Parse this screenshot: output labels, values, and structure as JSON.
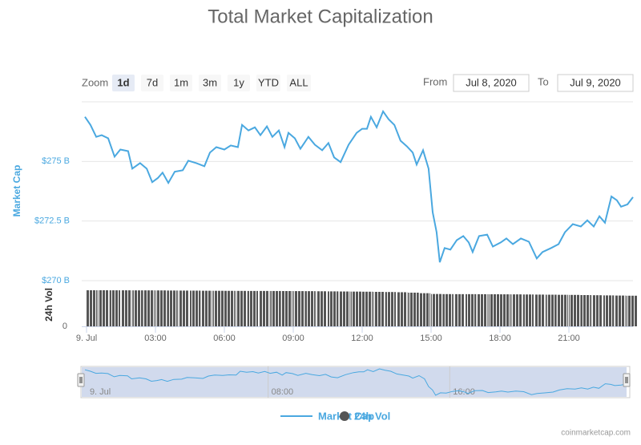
{
  "chart_data": {
    "type": "line",
    "title": "Total Market Capitalization",
    "range_selector": {
      "label": "Zoom",
      "buttons": [
        "1d",
        "7d",
        "1m",
        "3m",
        "1y",
        "YTD",
        "ALL"
      ],
      "selected": 0,
      "from_label": "From",
      "from_value": "Jul 8, 2020",
      "to_label": "To",
      "to_value": "Jul 9, 2020"
    },
    "y_label": "Market Cap",
    "y2_label": "24h Vol",
    "xlim": [
      -0.21,
      23.79
    ],
    "xticks": [
      {
        "value": 0,
        "label": "9. Jul"
      },
      {
        "value": 3,
        "label": "03:00"
      },
      {
        "value": 6,
        "label": "06:00"
      },
      {
        "value": 9,
        "label": "09:00"
      },
      {
        "value": 12,
        "label": "12:00"
      },
      {
        "value": 15,
        "label": "15:00"
      },
      {
        "value": 18,
        "label": "18:00"
      },
      {
        "value": 21,
        "label": "21:00"
      }
    ],
    "ylim": [
      270,
      277.5
    ],
    "yticks": [
      {
        "value": 270,
        "label": "$270 B"
      },
      {
        "value": 272.5,
        "label": "$272.5 B"
      },
      {
        "value": 275,
        "label": "$275 B"
      }
    ],
    "y2lim": [
      0,
      75
    ],
    "y2ticks": [
      0
    ],
    "grid": true,
    "series": [
      {
        "name": "Market Cap",
        "color": "#4aa8e0",
        "x": [
          -0.07,
          0.17,
          0.42,
          0.66,
          0.94,
          1.22,
          1.47,
          1.81,
          1.99,
          2.33,
          2.62,
          2.86,
          3.1,
          3.31,
          3.56,
          3.84,
          4.19,
          4.43,
          4.78,
          5.13,
          5.37,
          5.65,
          6.0,
          6.28,
          6.59,
          6.77,
          7.05,
          7.33,
          7.57,
          7.85,
          8.09,
          8.37,
          8.62,
          8.79,
          9.07,
          9.31,
          9.66,
          9.94,
          10.26,
          10.53,
          10.78,
          11.06,
          11.41,
          11.76,
          12.0,
          12.21,
          12.38,
          12.63,
          12.91,
          13.15,
          13.4,
          13.67,
          13.95,
          14.2,
          14.37,
          14.65,
          14.89,
          15.07,
          15.24,
          15.38,
          15.59,
          15.84,
          16.12,
          16.4,
          16.64,
          16.81,
          17.09,
          17.44,
          17.69,
          18.03,
          18.28,
          18.56,
          18.91,
          19.26,
          19.6,
          19.85,
          20.23,
          20.55,
          20.83,
          21.17,
          21.52,
          21.8,
          22.08,
          22.33,
          22.57,
          22.85,
          23.09,
          23.27,
          23.55,
          23.79
        ],
        "values": [
          276.87,
          276.53,
          276.03,
          276.1,
          275.97,
          275.2,
          275.5,
          275.43,
          274.7,
          274.93,
          274.7,
          274.13,
          274.3,
          274.53,
          274.1,
          274.57,
          274.63,
          275.03,
          274.93,
          274.8,
          275.37,
          275.6,
          275.5,
          275.67,
          275.6,
          276.53,
          276.3,
          276.43,
          276.1,
          276.47,
          276.03,
          276.3,
          275.6,
          276.2,
          275.97,
          275.53,
          276.03,
          275.7,
          275.47,
          275.77,
          275.17,
          274.97,
          275.7,
          276.2,
          276.37,
          276.37,
          276.87,
          276.43,
          277.1,
          276.77,
          276.53,
          275.87,
          275.63,
          275.37,
          274.87,
          275.47,
          274.7,
          272.87,
          272.03,
          270.77,
          271.37,
          271.3,
          271.7,
          271.87,
          271.6,
          271.2,
          271.87,
          271.93,
          271.43,
          271.6,
          271.77,
          271.53,
          271.77,
          271.63,
          270.93,
          271.2,
          271.37,
          271.53,
          272.03,
          272.37,
          272.27,
          272.53,
          272.27,
          272.7,
          272.43,
          273.53,
          273.37,
          273.1,
          273.2,
          273.5
        ]
      },
      {
        "name": "24h Vol",
        "color": "#555555",
        "axis": "y2",
        "x": [
          0,
          0.5,
          1,
          1.5,
          2,
          2.5,
          3,
          3.5,
          4,
          4.5,
          5,
          5.5,
          6,
          6.5,
          7,
          7.5,
          8,
          8.5,
          9,
          9.5,
          10,
          10.5,
          11,
          11.5,
          12,
          12.5,
          13,
          13.5,
          14,
          14.5,
          15,
          15.5,
          16,
          16.5,
          17,
          17.5,
          18,
          18.5,
          19,
          19.5,
          20,
          20.5,
          21,
          21.5,
          22,
          22.5,
          23,
          23.5
        ],
        "values": [
          67.5,
          67.5,
          67.4,
          67.4,
          67.3,
          67.3,
          67.2,
          67.0,
          66.9,
          66.8,
          66.6,
          66.5,
          66.4,
          66.3,
          66.2,
          66.2,
          66.1,
          66.0,
          65.9,
          65.8,
          65.6,
          65.4,
          65.2,
          65.0,
          64.8,
          64.5,
          64.2,
          63.8,
          63.0,
          62.0,
          60.5,
          60.3,
          60.2,
          60.2,
          60.1,
          60.0,
          59.9,
          59.8,
          59.6,
          59.4,
          59.2,
          59.0,
          58.8,
          58.5,
          58.2,
          57.9,
          57.6,
          57.3
        ]
      }
    ],
    "navigator_xticks": [
      {
        "value": 0,
        "label": "9. Jul"
      },
      {
        "value": 8,
        "label": "08:00"
      },
      {
        "value": 16,
        "label": "16:00"
      }
    ],
    "credit": "coinmarketcap.com"
  }
}
